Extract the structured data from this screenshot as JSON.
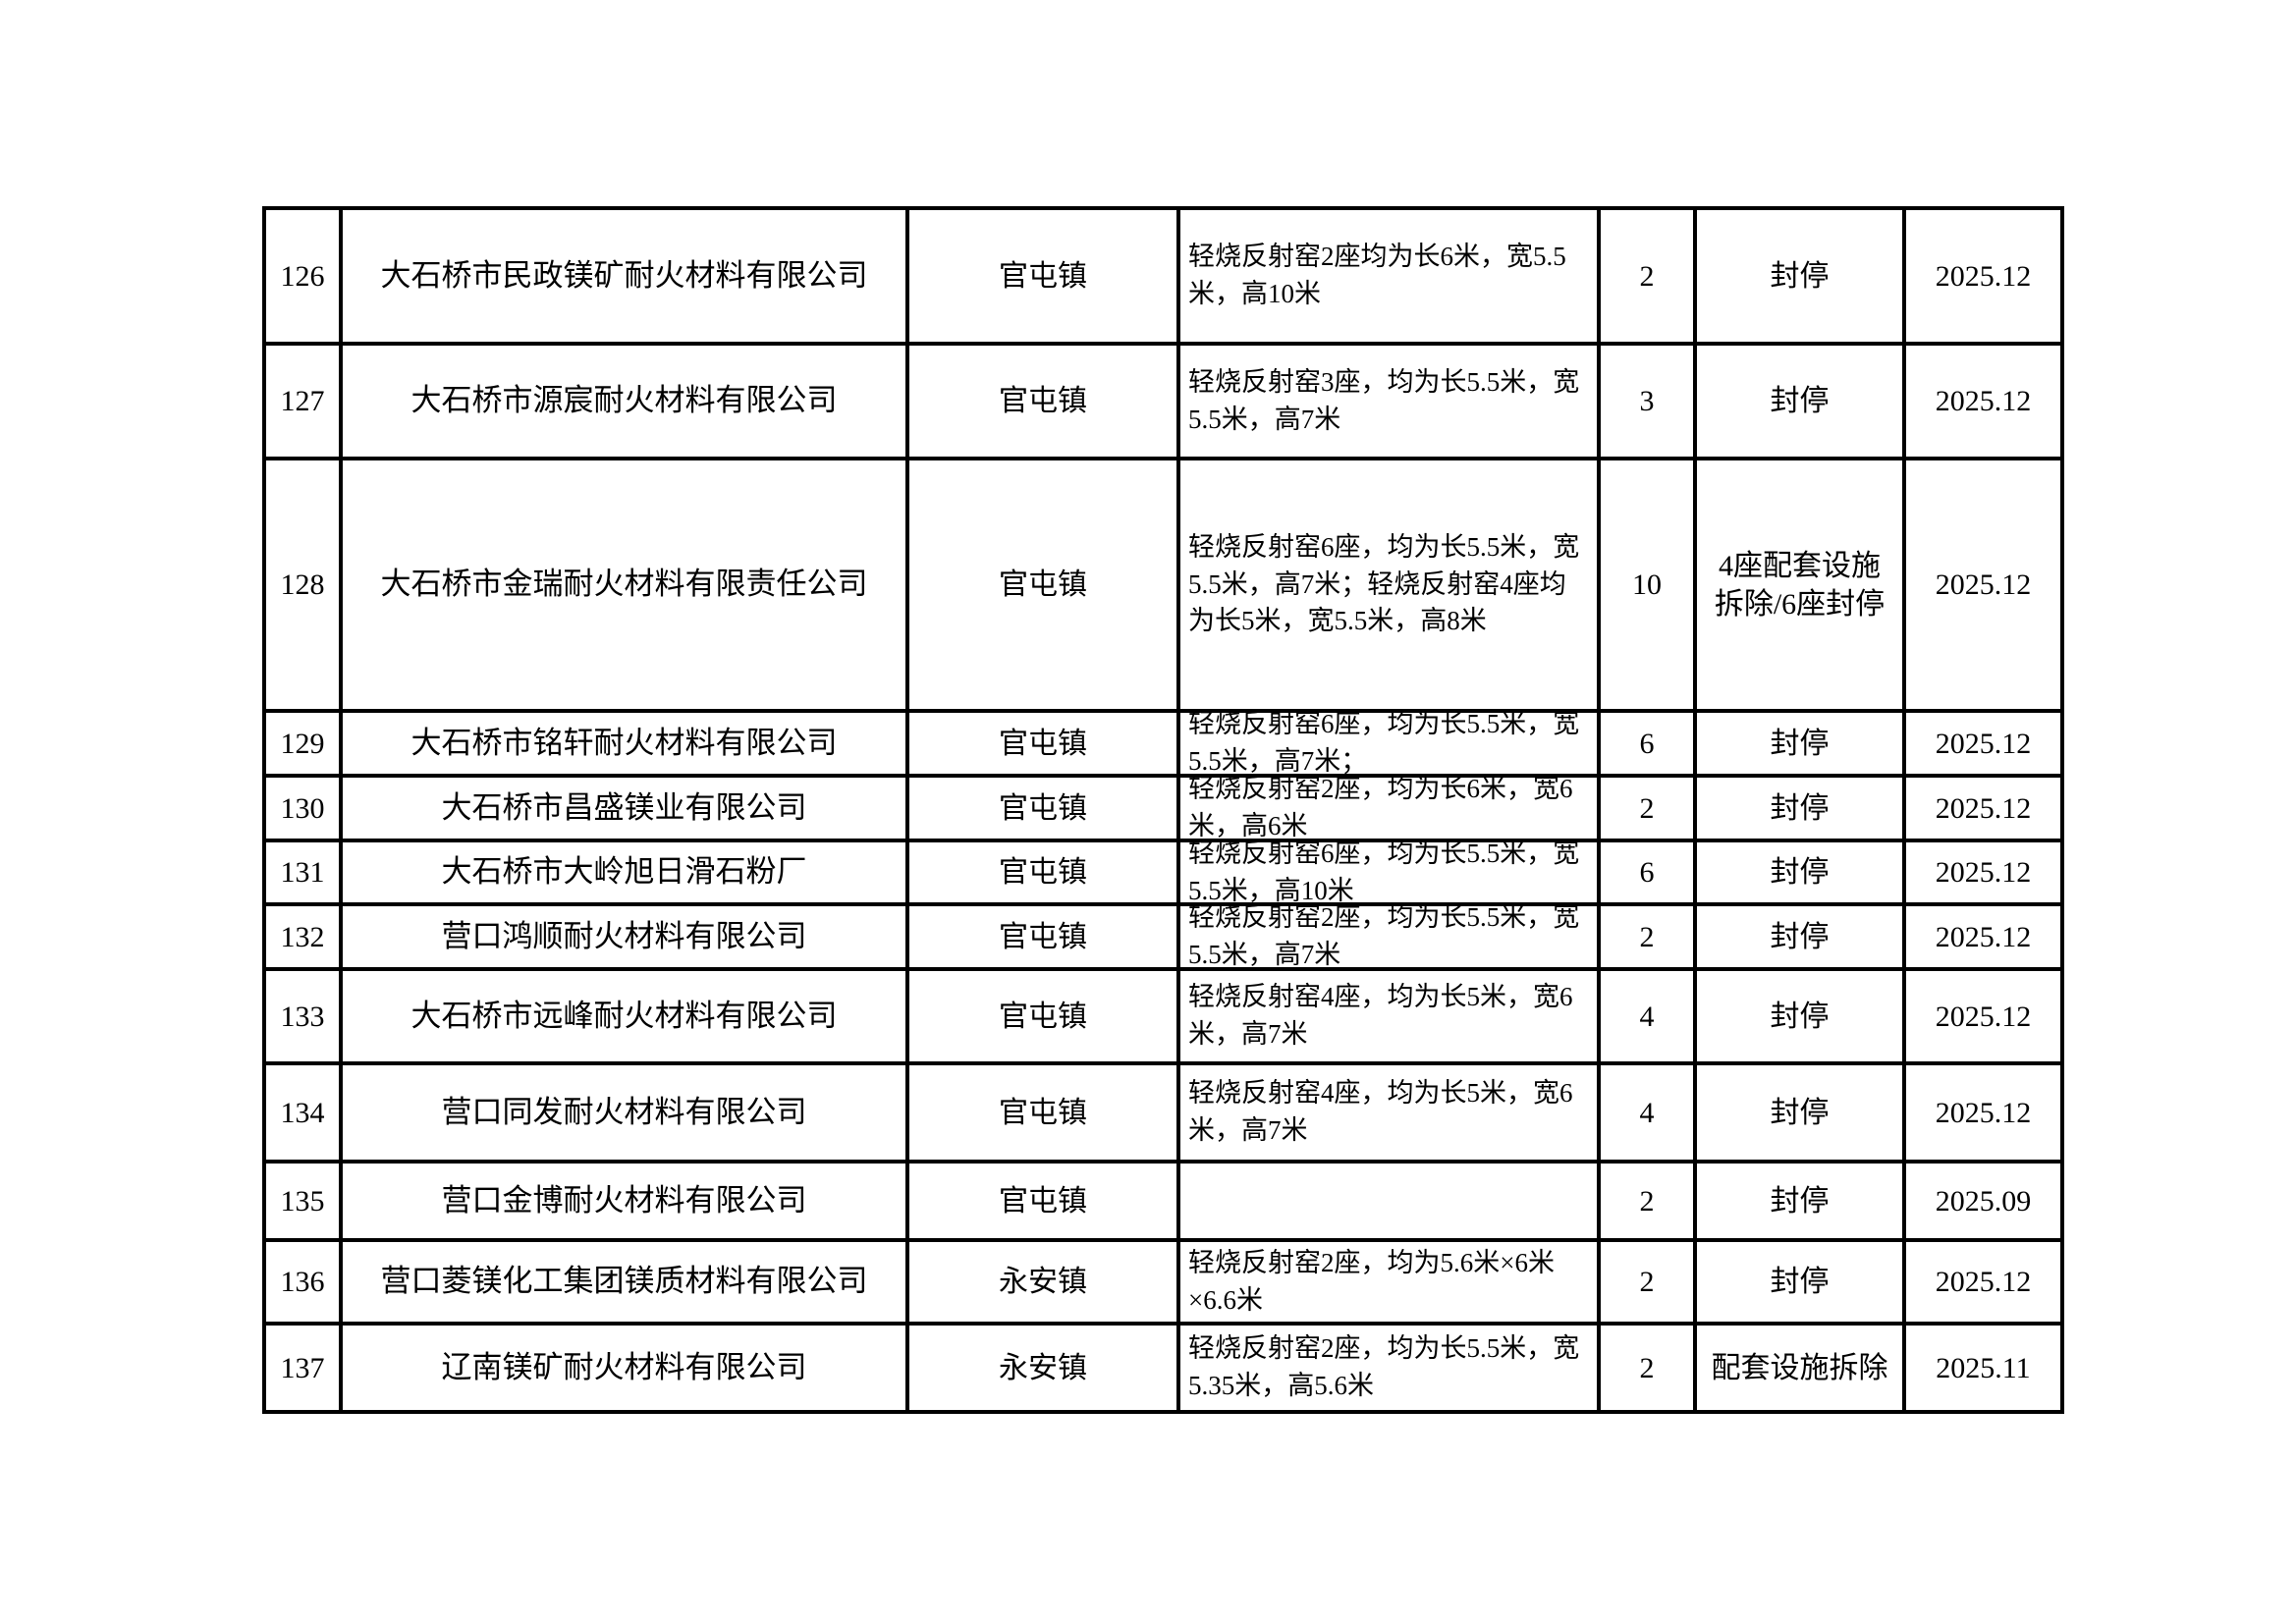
{
  "colors": {
    "border": "#000000",
    "text": "#000000",
    "background": "#ffffff"
  },
  "table": {
    "rows": [
      {
        "no": "126",
        "company": "大石桥市民政镁矿耐火材料有限公司",
        "town": "官屯镇",
        "kilns": "轻烧反射窑2座均为长6米，宽5.5米，高10米",
        "count": "2",
        "status": "封停",
        "date": "2025.12"
      },
      {
        "no": "127",
        "company": "大石桥市源宸耐火材料有限公司",
        "town": "官屯镇",
        "kilns": "轻烧反射窑3座，均为长5.5米，宽5.5米，高7米",
        "count": "3",
        "status": "封停",
        "date": "2025.12"
      },
      {
        "no": "128",
        "company": "大石桥市金瑞耐火材料有限责任公司",
        "town": "官屯镇",
        "kilns": "轻烧反射窑6座，均为长5.5米，宽5.5米，高7米；轻烧反射窑4座均为长5米，宽5.5米，高8米",
        "count": "10",
        "status": "4座配套设施拆除/6座封停",
        "date": "2025.12"
      },
      {
        "no": "129",
        "company": "大石桥市铭轩耐火材料有限公司",
        "town": "官屯镇",
        "kilns": "轻烧反射窑6座，均为长5.5米，宽5.5米，高7米；",
        "count": "6",
        "status": "封停",
        "date": "2025.12"
      },
      {
        "no": "130",
        "company": "大石桥市昌盛镁业有限公司",
        "town": "官屯镇",
        "kilns": "轻烧反射窑2座，均为长6米，宽6米，高6米",
        "count": "2",
        "status": "封停",
        "date": "2025.12"
      },
      {
        "no": "131",
        "company": "大石桥市大岭旭日滑石粉厂",
        "town": "官屯镇",
        "kilns": "轻烧反射窑6座，均为长5.5米，宽5.5米，高10米",
        "count": "6",
        "status": "封停",
        "date": "2025.12"
      },
      {
        "no": "132",
        "company": "营口鸿顺耐火材料有限公司",
        "town": "官屯镇",
        "kilns": "轻烧反射窑2座，均为长5.5米，宽5.5米，高7米",
        "count": "2",
        "status": "封停",
        "date": "2025.12"
      },
      {
        "no": "133",
        "company": "大石桥市远峰耐火材料有限公司",
        "town": "官屯镇",
        "kilns": "轻烧反射窑4座，均为长5米，宽6米，高7米",
        "count": "4",
        "status": "封停",
        "date": "2025.12"
      },
      {
        "no": "134",
        "company": "营口同发耐火材料有限公司",
        "town": "官屯镇",
        "kilns": "轻烧反射窑4座，均为长5米，宽6米，高7米",
        "count": "4",
        "status": "封停",
        "date": "2025.12"
      },
      {
        "no": "135",
        "company": "营口金博耐火材料有限公司",
        "town": "官屯镇",
        "kilns": "",
        "count": "2",
        "status": "封停",
        "date": "2025.09"
      },
      {
        "no": "136",
        "company": "营口菱镁化工集团镁质材料有限公司",
        "town": "永安镇",
        "kilns": "轻烧反射窑2座，均为5.6米×6米×6.6米",
        "count": "2",
        "status": "封停",
        "date": "2025.12"
      },
      {
        "no": "137",
        "company": "辽南镁矿耐火材料有限公司",
        "town": "永安镇",
        "kilns": "轻烧反射窑2座，均为长5.5米，宽5.35米，高5.6米",
        "count": "2",
        "status": "配套设施拆除",
        "date": "2025.11"
      }
    ]
  }
}
